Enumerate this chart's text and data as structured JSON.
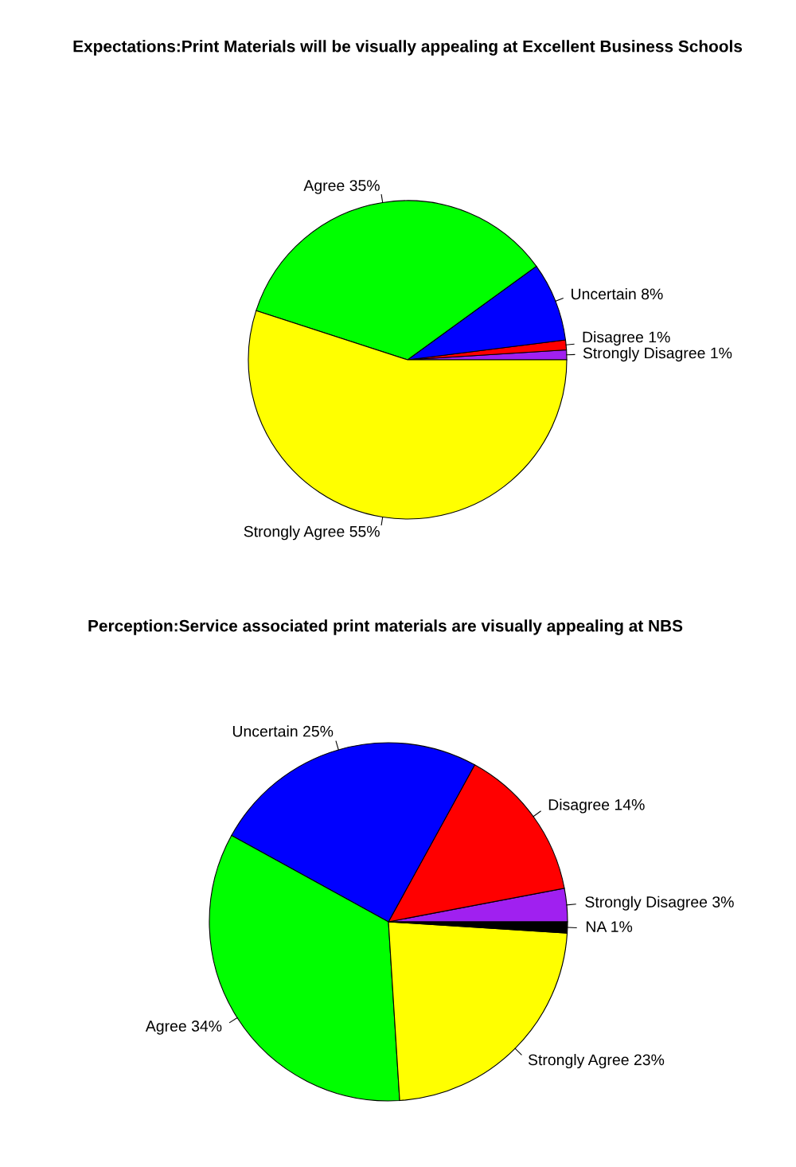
{
  "chart_data": [
    {
      "type": "pie",
      "title": "Expectations:Print Materials will be visually appealing at Excellent Business Schools",
      "categories": [
        "Strongly Disagree",
        "Disagree",
        "Uncertain",
        "Agree",
        "Strongly Agree"
      ],
      "values": [
        1,
        1,
        8,
        35,
        55
      ],
      "value_labels": [
        "1%",
        "1%",
        "8%",
        "35%",
        "55%"
      ],
      "colors": [
        "#a020f0",
        "#ff0000",
        "#0000ff",
        "#00ff00",
        "#ffff00"
      ]
    },
    {
      "type": "pie",
      "title": "Perception:Service associated print materials are visually appealing at NBS",
      "categories": [
        "Strongly Disagree",
        "Disagree",
        "Uncertain",
        "Agree",
        "Strongly Agree",
        "NA"
      ],
      "values": [
        3,
        14,
        25,
        34,
        23,
        1
      ],
      "value_labels": [
        "3%",
        "14%",
        "25%",
        "34%",
        "23%",
        "1%"
      ],
      "colors": [
        "#a020f0",
        "#ff0000",
        "#0000ff",
        "#00ff00",
        "#ffff00",
        "#000000"
      ]
    }
  ]
}
